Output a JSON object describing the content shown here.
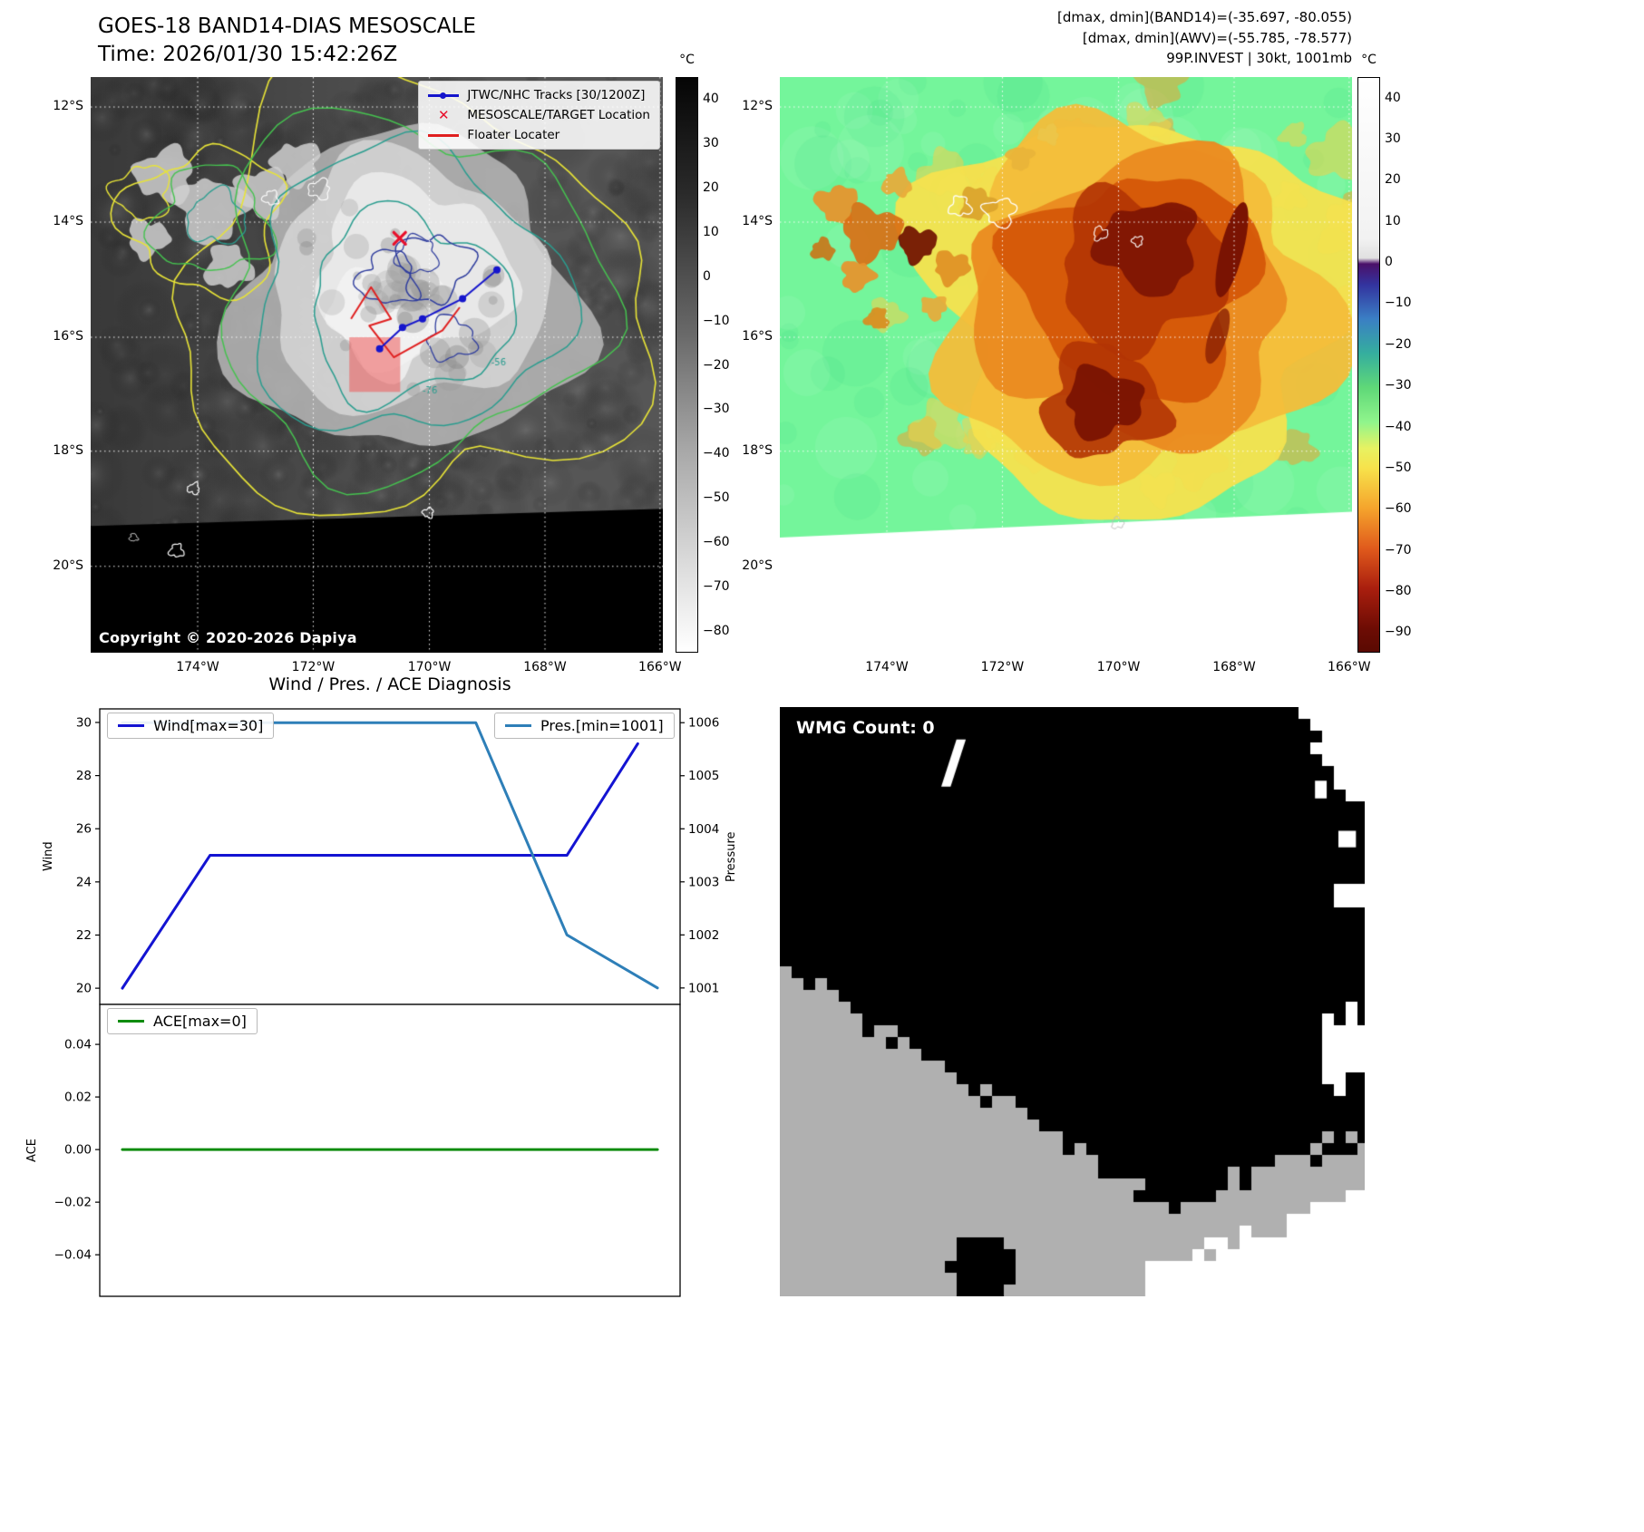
{
  "colors": {
    "wind_line": "#1414d2",
    "pres_line": "#2e7fb8",
    "ace_line": "#0f8c0f",
    "track_blue": "#1515cc",
    "marker_red": "#e02020",
    "target_x_red": "#e8102c",
    "target_box_pink": "#ee5a5a",
    "contour_yellow": "#e8e437",
    "contour_green": "#45c24f",
    "contour_teal": "#2a9d8f",
    "contour_navy": "#2f3d9e",
    "awv_background_green": "#74f59b"
  },
  "panel_band14": {
    "title_line1": "GOES-18 BAND14-DIAS MESOSCALE",
    "title_line2": "Time: 2026/01/30 15:42:26Z",
    "copyright": "Copyright © 2020-2026 Dapiya",
    "legend": {
      "tracks": "JTWC/NHC Tracks [30/1200Z]",
      "target": "MESOSCALE/TARGET Location",
      "floater": "Floater Locater"
    },
    "contour_labels": [
      "-56",
      "-76"
    ],
    "colorbar": {
      "unit": "°C",
      "vmax": 45,
      "vmin": -85,
      "tick_values": [
        40,
        30,
        20,
        10,
        0,
        -10,
        -20,
        -30,
        -40,
        -50,
        -60,
        -70,
        -80
      ],
      "tick_labels": [
        "40",
        "30",
        "20",
        "10",
        "0",
        "−10",
        "−20",
        "−30",
        "−40",
        "−50",
        "−60",
        "−70",
        "−80"
      ]
    },
    "lat_ticks": [
      "12°S",
      "14°S",
      "16°S",
      "18°S",
      "20°S"
    ],
    "lon_ticks": [
      "174°W",
      "172°W",
      "170°W",
      "168°W",
      "166°W"
    ]
  },
  "panel_awv": {
    "header_line1": "[dmax, dmin](BAND14)=(-35.697, -80.055)",
    "header_line2": "[dmax, dmin](AWV)=(-55.785, -78.577)",
    "header_line3": "99P.INVEST | 30kt, 1001mb",
    "colorbar": {
      "unit": "°C",
      "vmax": 45,
      "vmin": -95,
      "tick_values": [
        40,
        30,
        20,
        10,
        0,
        -10,
        -20,
        -30,
        -40,
        -50,
        -60,
        -70,
        -80,
        -90
      ],
      "tick_labels": [
        "40",
        "30",
        "20",
        "10",
        "0",
        "−10",
        "−20",
        "−30",
        "−40",
        "−50",
        "−60",
        "−70",
        "−80",
        "−90"
      ]
    },
    "lat_ticks": [
      "12°S",
      "14°S",
      "16°S",
      "18°S",
      "20°S"
    ],
    "lon_ticks": [
      "174°W",
      "172°W",
      "170°W",
      "168°W",
      "166°W"
    ]
  },
  "diagnosis": {
    "title": "Wind / Pres. / ACE Diagnosis",
    "ylabel_wind": "Wind",
    "ylabel_pressure": "Pressure",
    "ylabel_ace": "ACE"
  },
  "wmg": {
    "label": "WMG Count: 0"
  },
  "chart_data": [
    {
      "type": "line",
      "title": "Wind / Pres. diagnosis",
      "legend": [
        "Wind[max=30]",
        "Pres.[min=1001]"
      ],
      "left_axis": {
        "label": "Wind",
        "lim": [
          19.39,
          30.51
        ],
        "tick_values": [
          20,
          22,
          24,
          26,
          28,
          30
        ],
        "tick_labels": [
          "20",
          "22",
          "24",
          "26",
          "28",
          "30"
        ]
      },
      "right_axis": {
        "label": "Pressure",
        "lim": [
          1000.69,
          1006.26
        ],
        "tick_values": [
          1001,
          1002,
          1003,
          1004,
          1005,
          1006
        ],
        "tick_labels": [
          "1001",
          "1002",
          "1003",
          "1004",
          "1005",
          "1006"
        ]
      },
      "series": [
        {
          "name": "Wind[max=30]",
          "axis": "left",
          "color": "#1414d2",
          "points": [
            [
              0.039,
              20
            ],
            [
              0.19,
              25
            ],
            [
              0.805,
              25
            ],
            [
              0.927,
              29.2
            ]
          ]
        },
        {
          "name": "Pres.[min=1001]",
          "axis": "right",
          "color": "#2e7fb8",
          "points": [
            [
              0.039,
              1006
            ],
            [
              0.648,
              1006
            ],
            [
              0.805,
              1002
            ],
            [
              0.961,
              1001
            ]
          ]
        }
      ]
    },
    {
      "type": "line",
      "title": "ACE diagnosis",
      "legend": [
        "ACE[max=0]"
      ],
      "left_axis": {
        "label": "ACE",
        "lim": [
          -0.0558,
          0.0552
        ],
        "tick_values": [
          0.04,
          0.02,
          0,
          -0.02,
          -0.04
        ],
        "tick_labels": [
          "0.04",
          "0.02",
          "0.00",
          "−0.02",
          "−0.04"
        ]
      },
      "series": [
        {
          "name": "ACE[max=0]",
          "axis": "left",
          "color": "#0f8c0f",
          "points": [
            [
              0.039,
              0
            ],
            [
              0.961,
              0
            ]
          ]
        }
      ]
    }
  ]
}
